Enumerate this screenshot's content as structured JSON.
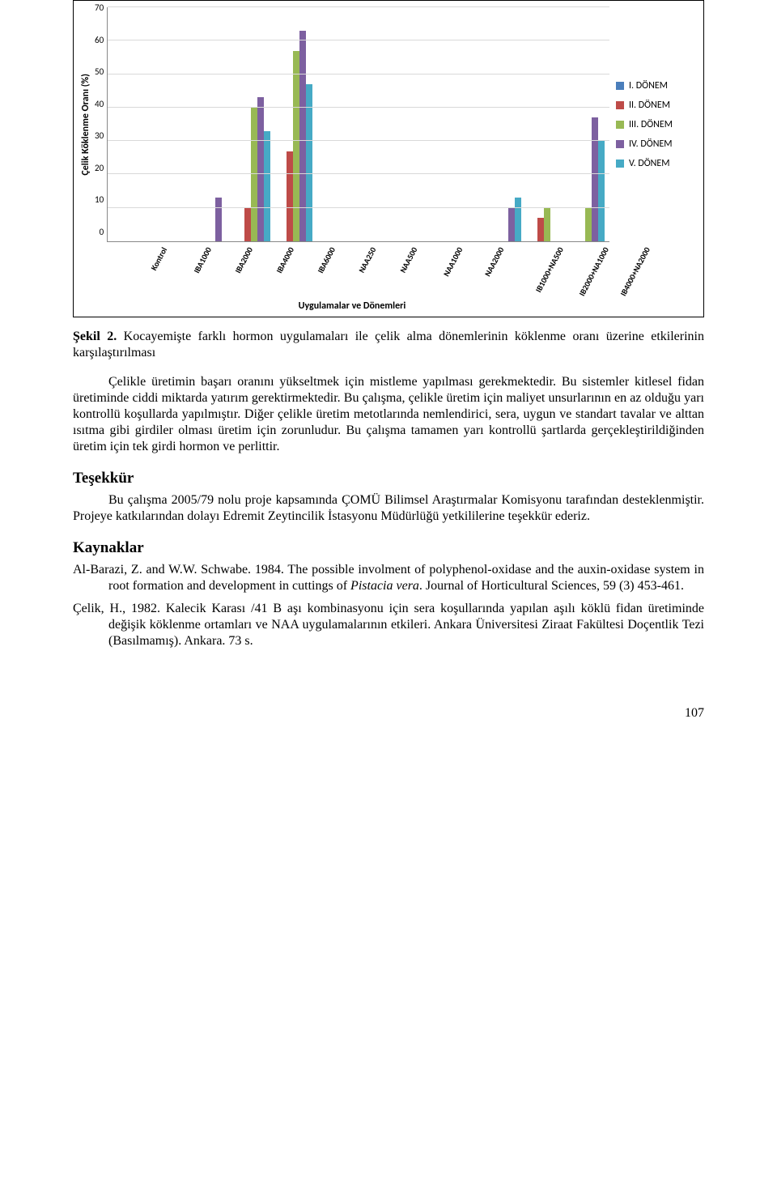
{
  "chart": {
    "type": "bar-grouped",
    "ylabel": "Çelik Köklenme Oranı (%)",
    "xlabel": "Uygulamalar ve Dönemleri",
    "ymin": 0,
    "ymax": 70,
    "ytick_step": 10,
    "yticks": [
      "70",
      "60",
      "50",
      "40",
      "30",
      "20",
      "10",
      "0"
    ],
    "grid_color": "#d9d9d9",
    "axis_color": "#888888",
    "background_color": "#ffffff",
    "categories": [
      "Kontrol",
      "IBA1000",
      "IBA2000",
      "IBA4000",
      "IBA6000",
      "NAA250",
      "NAA500",
      "NAA1000",
      "NAA2000",
      "IB1000+NA500",
      "IB2000+NA1000",
      "IB4000+NA2000"
    ],
    "series": [
      {
        "name": "I. DÖNEM",
        "color": "#4a7ebb"
      },
      {
        "name": "II. DÖNEM",
        "color": "#be4b48"
      },
      {
        "name": "III. DÖNEM",
        "color": "#98b954"
      },
      {
        "name": "IV. DÖNEM",
        "color": "#7d60a0"
      },
      {
        "name": "V. DÖNEM",
        "color": "#46aac5"
      }
    ],
    "values": [
      [
        0,
        0,
        0,
        0,
        0
      ],
      [
        0,
        0,
        0,
        0,
        0
      ],
      [
        0,
        0,
        0,
        13,
        0
      ],
      [
        0,
        10,
        40,
        43,
        33
      ],
      [
        0,
        27,
        57,
        63,
        47
      ],
      [
        0,
        0,
        0,
        0,
        0
      ],
      [
        0,
        0,
        0,
        0,
        0
      ],
      [
        0,
        0,
        0,
        0,
        0
      ],
      [
        0,
        0,
        0,
        0,
        0
      ],
      [
        0,
        0,
        0,
        10,
        13
      ],
      [
        0,
        7,
        10,
        0,
        0
      ],
      [
        0,
        0,
        10,
        37,
        30
      ]
    ],
    "label_font": "Calibri",
    "label_fontsize": 12,
    "tick_fontsize": 11,
    "xtick_fontsize": 10,
    "xtick_rotation_deg": -62
  },
  "caption": {
    "label": "Şekil 2.",
    "text": "Kocayemişte farklı hormon uygulamaları ile çelik alma dönemlerinin köklenme oranı üzerine etkilerinin karşılaştırılması"
  },
  "body_text": "Çelikle üretimin başarı oranını yükseltmek için mistleme yapılması gerekmektedir. Bu sistemler kitlesel fidan üretiminde ciddi miktarda yatırım gerektirmektedir. Bu çalışma, çelikle üretim için maliyet unsurlarının en az olduğu yarı kontrollü koşullarda yapılmıştır. Diğer çelikle üretim metotlarında nemlendirici, sera, uygun ve standart tavalar ve alttan ısıtma gibi girdiler olması üretim için zorunludur. Bu çalışma tamamen yarı kontrollü şartlarda gerçekleştirildiğinden üretim için tek girdi hormon ve perlittir.",
  "tesekkur": {
    "heading": "Teşekkür",
    "text": "Bu çalışma 2005/79 nolu proje kapsamında ÇOMÜ Bilimsel Araştırmalar Komisyonu tarafından desteklenmiştir. Projeye katkılarından dolayı Edremit Zeytincilik İstasyonu Müdürlüğü yetkililerine teşekkür ederiz."
  },
  "kaynaklar_heading": "Kaynaklar",
  "references": [
    {
      "pre": "Al-Barazi, Z. and W.W. Schwabe. 1984. The possible involment of polyphenol-oxidase and the auxin-oxidase system in root formation and development in cuttings of ",
      "ital": "Pistacia vera",
      "post": ". Journal of Horticultural Sciences, 59 (3) 453-461."
    },
    {
      "pre": "Çelik, H., 1982. Kalecik Karası /41 B aşı kombinasyonu için sera koşullarında yapılan aşılı köklü fidan üretiminde değişik köklenme ortamları ve NAA uygulamalarının etkileri. Ankara Üniversitesi Ziraat Fakültesi Doçentlik Tezi (Basılmamış). Ankara. 73 s.",
      "ital": "",
      "post": ""
    }
  ],
  "page_number": "107"
}
